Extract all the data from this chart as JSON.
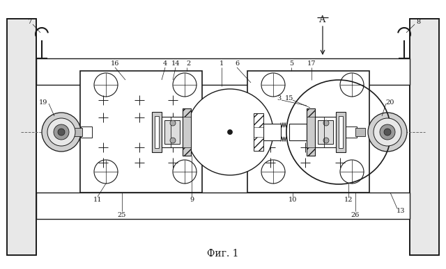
{
  "title": "Фиг. 1",
  "title_fontsize": 10,
  "bg_color": "#ffffff",
  "lc": "#1a1a1a",
  "wall_fc": "#d8d8d8",
  "pipe_fc": "#f0f0f0"
}
